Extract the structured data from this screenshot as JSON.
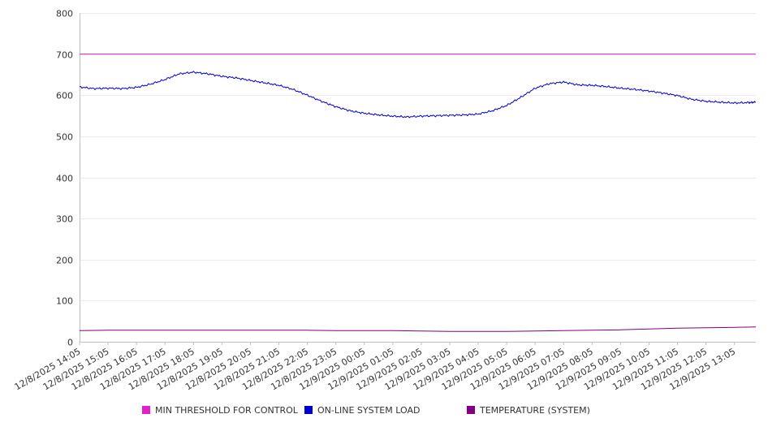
{
  "chart_data": {
    "type": "line",
    "title": "",
    "xlabel": "",
    "ylabel": "",
    "ylim": [
      0,
      800
    ],
    "yticks": [
      0,
      100,
      200,
      300,
      400,
      500,
      600,
      700,
      800
    ],
    "grid": true,
    "legend_position": "bottom",
    "x_range_hours": [
      0,
      23.75
    ],
    "categories": [
      "12/8/2025 14:05",
      "12/8/2025 15:05",
      "12/8/2025 16:05",
      "12/8/2025 17:05",
      "12/8/2025 18:05",
      "12/8/2025 19:05",
      "12/8/2025 20:05",
      "12/8/2025 21:05",
      "12/8/2025 22:05",
      "12/8/2025 23:05",
      "12/9/2025 00:05",
      "12/9/2025 01:05",
      "12/9/2025 02:05",
      "12/9/2025 03:05",
      "12/9/2025 04:05",
      "12/9/2025 05:05",
      "12/9/2025 06:05",
      "12/9/2025 07:05",
      "12/9/2025 08:05",
      "12/9/2025 09:05",
      "12/9/2025 10:05",
      "12/9/2025 11:05",
      "12/9/2025 12:05",
      "12/9/2025 13:05"
    ],
    "series": [
      {
        "name": "MIN THRESHOLD FOR CONTROL",
        "color": "#e020c8",
        "x": [
          0,
          23.75
        ],
        "values": [
          700,
          700
        ]
      },
      {
        "name": "ON-LINE SYSTEM LOAD",
        "color": "#0000d0",
        "x": [
          0,
          0.5,
          1,
          1.5,
          2,
          2.5,
          3,
          3.5,
          4,
          4.5,
          5,
          5.5,
          6,
          6.5,
          7,
          7.5,
          8,
          8.5,
          9,
          9.5,
          10,
          10.5,
          11,
          11.5,
          12,
          12.5,
          13,
          13.5,
          14,
          14.5,
          15,
          15.5,
          16,
          16.5,
          17,
          17.5,
          18,
          18.5,
          19,
          19.5,
          20,
          20.5,
          21,
          21.5,
          22,
          22.5,
          23,
          23.5,
          23.75
        ],
        "values": [
          620,
          616,
          617,
          616,
          619,
          627,
          638,
          652,
          656,
          652,
          646,
          642,
          636,
          630,
          624,
          614,
          600,
          585,
          572,
          562,
          556,
          552,
          549,
          547,
          549,
          550,
          551,
          552,
          554,
          562,
          575,
          595,
          617,
          628,
          632,
          625,
          624,
          621,
          617,
          614,
          610,
          605,
          599,
          590,
          585,
          583,
          581,
          582,
          583
        ]
      },
      {
        "name": "TEMPERATURE (SYSTEM)",
        "color": "#800080",
        "x": [
          0,
          1,
          2,
          3,
          4,
          5,
          6,
          7,
          8,
          9,
          10,
          11,
          12,
          13,
          14,
          15,
          16,
          17,
          18,
          19,
          20,
          21,
          22,
          23,
          23.75
        ],
        "values": [
          27,
          28,
          28,
          28,
          28,
          28,
          28,
          28,
          28,
          27,
          27,
          27,
          26,
          25,
          25,
          25,
          26,
          27,
          28,
          29,
          31,
          33,
          34,
          35,
          36
        ]
      }
    ]
  }
}
